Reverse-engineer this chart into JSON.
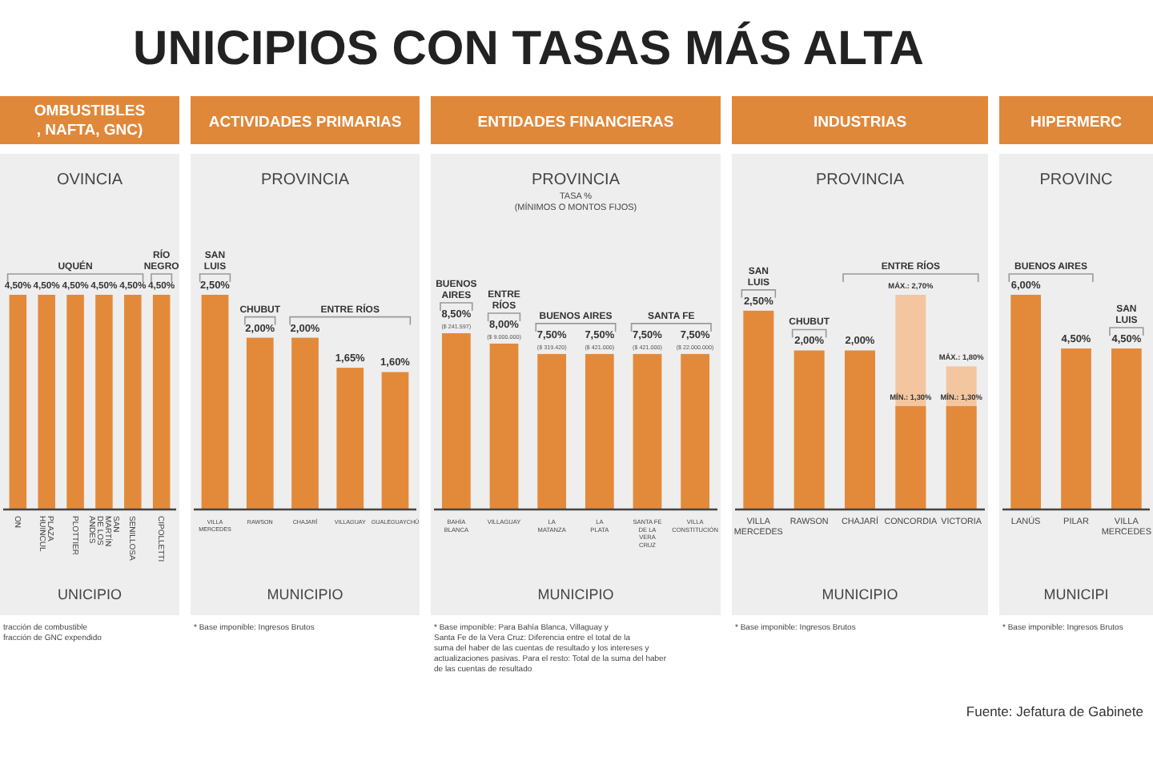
{
  "chart_data": [
    {
      "type": "bar",
      "title": "OMBUSTIBLES\n, NAFTA, GNC)",
      "subtitle": "OVINCIA",
      "xlabel": "UNICIPIO",
      "categories": [
        "ON",
        "PLAZA\nHUINCUL",
        "PLOTTIER",
        "SAN\nMARTÍN\nDE LOS\nANDES",
        "SENILLOSA",
        "CIPOLLETTI"
      ],
      "series": [
        {
          "color": "#e38a3a",
          "values": [
            4.5,
            4.5,
            4.5,
            4.5,
            4.5,
            null
          ],
          "value_labels": [
            "4,50%",
            "4,50%",
            "4,50%",
            "4,50%",
            "4,50%",
            null
          ]
        },
        {
          "color": "#e38a3a",
          "values": [
            null,
            null,
            null,
            null,
            null,
            4.5
          ],
          "value_labels": [
            null,
            null,
            null,
            null,
            null,
            "4,50%"
          ]
        }
      ],
      "annotations": [
        "UQUÉN",
        "RÍO\nNEGRO",
        "UNICIPIOS CON TASAS MÁS ALTA",
        "tracción de combustible\nfracción de GNC expendido"
      ]
    },
    {
      "type": "bar",
      "title": "ACTIVIDADES PRIMARIAS",
      "subtitle": "PROVINCIA",
      "xlabel": "MUNICIPIO",
      "categories": [
        "VILLA\nMERCEDES",
        "RAWSON",
        "CHAJARÍ",
        "VILLAGUAY",
        "GUALEGUAYCHÚ"
      ],
      "series": [
        {
          "color": "#e38a3a",
          "values": [
            2.5,
            null,
            null,
            null,
            null
          ],
          "value_labels": [
            "2,50%",
            null,
            null,
            null,
            null
          ]
        },
        {
          "color": "#e38a3a",
          "values": [
            null,
            2.0,
            null,
            null,
            null
          ],
          "value_labels": [
            null,
            "2,00%",
            null,
            null,
            null
          ]
        },
        {
          "color": "#e38a3a",
          "values": [
            null,
            null,
            2.0,
            1.65,
            1.6
          ],
          "value_labels": [
            null,
            null,
            "2,00%",
            "1,65%",
            "1,60%"
          ]
        }
      ],
      "annotations": [
        "SAN\nLUIS",
        "CHUBUT",
        "ENTRE RÍOS",
        "* Base imponible: Ingresos Brutos"
      ]
    },
    {
      "type": "bar",
      "title": "ENTIDADES FINANCIERAS",
      "subtitle": "PROVINCIA\nTASA %\n(MÍNIMOS O MONTOS FIJOS)",
      "xlabel": "MUNICIPIO",
      "categories": [
        "BAHÍA\nBLANCA",
        "VILLAGUAY",
        "LA\nMATANZA",
        "LA\nPLATA",
        "SANTA FE\nDE LA\nVERA\nCRUZ",
        "VILLA\nCONSTITUCIÓN"
      ],
      "series": [
        {
          "color": "#e38a3a",
          "values": [
            8.5,
            null,
            7.5,
            7.5,
            null,
            null
          ],
          "value_labels": [
            "8,50%",
            null,
            "7,50%",
            "7,50%",
            null,
            null
          ]
        },
        {
          "color": "#e38a3a",
          "values": [
            null,
            8.0,
            null,
            null,
            null,
            null
          ],
          "value_labels": [
            null,
            "8,00%",
            null,
            null,
            null,
            null
          ]
        },
        {
          "color": "#e38a3a",
          "values": [
            null,
            null,
            null,
            null,
            7.5,
            7.5
          ],
          "value_labels": [
            null,
            null,
            null,
            null,
            "7,50%",
            "7,50%"
          ]
        }
      ],
      "annotations": [
        "BUENOS\nAIRES",
        "ENTRE\nRÍOS",
        "BUENOS AIRES",
        "SANTA FE",
        "* Base imponible: Para Bahía Blanca, Villaguay y\nSanta Fe de la Vera Cruz: Diferencia entre el total de la\nsuma del haber de las cuentas de resultado y los intereses y\nactualizaciones pasivas. Para el resto: Total de la suma del haber\nde las cuentas de resultado",
        {
          "text": "($ 241.597)",
          "x": "BAHÍA\nBLANCA",
          "y": 8.5
        },
        {
          "text": "($ 9.000.000)",
          "x": "VILLAGUAY",
          "y": 8.0
        },
        {
          "text": "($ 319.420)",
          "x": "LA\nMATANZA",
          "y": 7.5
        },
        {
          "text": "($ 421.000)",
          "x": "LA\nPLATA",
          "y": 7.5
        },
        {
          "text": "($ 421.000)",
          "x": "SANTA FE\nDE LA\nVERA\nCRUZ",
          "y": 7.5
        },
        {
          "text": "($ 22.000.000)",
          "x": "VILLA\nCONSTITUCIÓN",
          "y": 7.5
        }
      ]
    },
    {
      "type": "bar",
      "title": "INDUSTRIAS",
      "subtitle": "PROVINCIA",
      "xlabel": "MUNICIPIO",
      "categories": [
        "VILLA\nMERCEDES",
        "RAWSON",
        "CHAJARÍ",
        "CONCORDIA",
        "VICTORIA"
      ],
      "series": [
        {
          "color": "#f3c6a0",
          "values": [
            null,
            null,
            null,
            2.7,
            1.8
          ],
          "value_labels": [
            null,
            null,
            null,
            "MÁX.: 2,70%",
            "MÁX.: 1,80%"
          ]
        },
        {
          "color": "#e38a3a",
          "values": [
            2.5,
            null,
            null,
            null,
            null
          ],
          "value_labels": [
            "2,50%",
            null,
            null,
            null,
            null
          ]
        },
        {
          "color": "#e38a3a",
          "values": [
            null,
            2.0,
            null,
            null,
            null
          ],
          "value_labels": [
            null,
            "2,00%",
            null,
            null,
            null
          ]
        },
        {
          "color": "#e38a3a",
          "values": [
            null,
            null,
            2.0,
            1.3,
            1.3
          ],
          "value_labels": [
            null,
            null,
            "2,00%",
            "MÍN.: 1,30%",
            "MÍN.: 1,30%"
          ]
        }
      ],
      "annotations": [
        "SAN\nLUIS",
        "CHUBUT",
        "ENTRE RÍOS",
        "* Base imponible: Ingresos Brutos"
      ]
    },
    {
      "type": "bar",
      "title": "HIPERMERC",
      "subtitle": "PROVINC",
      "xlabel": "MUNICIPI",
      "categories": [
        "LANÚS",
        "PILAR",
        "VILLA\nMERCEDES"
      ],
      "series": [
        {
          "color": "#e38a3a",
          "values": [
            6.0,
            4.5,
            null
          ],
          "value_labels": [
            "6,00%",
            "4,50%",
            null
          ]
        },
        {
          "color": "#e38a3a",
          "values": [
            null,
            null,
            4.5
          ],
          "value_labels": [
            null,
            null,
            "4,50%"
          ]
        }
      ],
      "annotations": [
        "BUENOS AIRES",
        "SAN\nLUIS",
        "* Base imponible: Ingresos Brutos",
        "Fuente: Jefatura de Gabinete"
      ]
    }
  ]
}
